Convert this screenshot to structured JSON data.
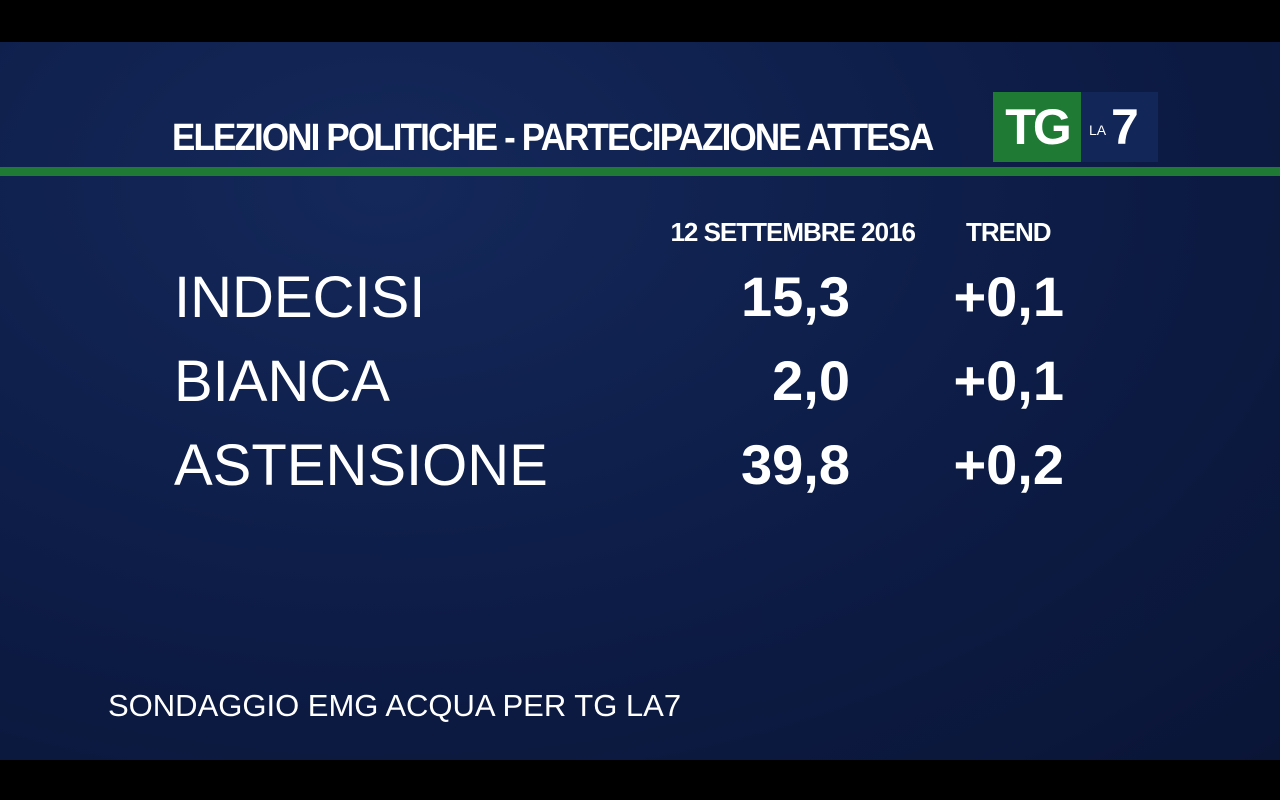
{
  "header": {
    "title": "ELEZIONI POLITICHE - PARTECIPAZIONE ATTESA"
  },
  "logo": {
    "tg": "TG",
    "la": "LA",
    "seven": "7"
  },
  "table": {
    "columns": [
      "12 SETTEMBRE 2016",
      "TREND"
    ],
    "rows": [
      [
        "INDECISI",
        "15,3",
        "+0,1"
      ],
      [
        "BIANCA",
        "2,0",
        "+0,1"
      ],
      [
        "ASTENSIONE",
        "39,8",
        "+0,2"
      ]
    ]
  },
  "footer": {
    "source": "SONDAGGIO EMG ACQUA PER TG LA7"
  }
}
